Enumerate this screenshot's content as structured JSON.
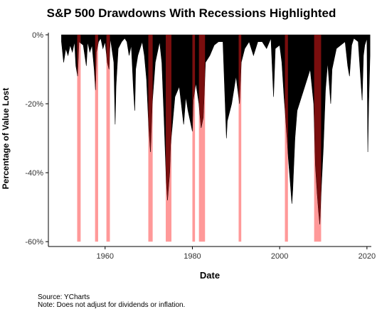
{
  "chart_data": {
    "type": "area",
    "title": "S&P 500 Drawdowns With Recessions Highlighted",
    "xlabel": "Date",
    "ylabel": "Percentage of Value Lost",
    "xlim": [
      1947,
      2021
    ],
    "ylim": [
      -61,
      0
    ],
    "x_ticks": [
      "1960",
      "1980",
      "2000",
      "2020"
    ],
    "y_ticks": [
      "0%",
      "-20%",
      "-40%",
      "-60%"
    ],
    "grid": false,
    "colors": {
      "drawdown": "#000000",
      "recession": "#ff9999",
      "recession_overlap": "#7a0e0e"
    },
    "recessions": [
      {
        "start": 1953.6,
        "end": 1954.4
      },
      {
        "start": 1957.7,
        "end": 1958.4
      },
      {
        "start": 1960.3,
        "end": 1961.1
      },
      {
        "start": 1969.9,
        "end": 1970.9
      },
      {
        "start": 1973.9,
        "end": 1975.2
      },
      {
        "start": 1980.0,
        "end": 1980.6
      },
      {
        "start": 1981.5,
        "end": 1982.9
      },
      {
        "start": 1990.6,
        "end": 1991.2
      },
      {
        "start": 2001.2,
        "end": 2001.9
      },
      {
        "start": 2007.9,
        "end": 2009.5
      }
    ],
    "series": [
      {
        "x": [
          1950.0,
          1950.5,
          1951.0,
          1951.5,
          1952.0,
          1952.5,
          1953.0,
          1953.3,
          1953.7,
          1954.0,
          1955.0,
          1955.7,
          1956.0,
          1956.5,
          1957.0,
          1957.5,
          1957.8,
          1958.0,
          1958.5,
          1959.0,
          1959.5,
          1960.0,
          1960.5,
          1960.9,
          1961.2,
          1962.0,
          1962.3,
          1962.5,
          1963.0,
          1963.8,
          1964.5,
          1965.0,
          1965.5,
          1966.0,
          1966.5,
          1966.8,
          1967.0,
          1967.5,
          1968.0,
          1968.5,
          1969.0,
          1969.5,
          1970.0,
          1970.4,
          1970.8,
          1971.5,
          1972.5,
          1973.0,
          1973.5,
          1974.0,
          1974.3,
          1974.8,
          1975.0,
          1975.5,
          1976.0,
          1977.0,
          1978.0,
          1978.5,
          1979.0,
          1980.0,
          1980.2,
          1980.8,
          1981.5,
          1982.0,
          1982.5,
          1983.0,
          1984.0,
          1985.0,
          1986.0,
          1987.0,
          1987.8,
          1988.0,
          1989.0,
          1990.0,
          1990.8,
          1991.2,
          1992.0,
          1993.0,
          1994.0,
          1995.0,
          1996.0,
          1997.0,
          1998.0,
          1998.6,
          1999.0,
          2000.0,
          2000.5,
          2001.0,
          2001.7,
          2002.0,
          2002.5,
          2002.8,
          2003.0,
          2003.5,
          2004.0,
          2005.0,
          2006.0,
          2007.0,
          2007.8,
          2008.2,
          2008.6,
          2008.9,
          2009.2,
          2009.6,
          2010.0,
          2010.5,
          2011.0,
          2011.7,
          2012.0,
          2013.0,
          2014.0,
          2015.0,
          2015.6,
          2016.0,
          2016.5,
          2017.0,
          2018.0,
          2018.9,
          2019.2,
          2019.5,
          2020.0,
          2020.2,
          2020.4,
          2020.7
        ],
        "y": [
          -2,
          -8,
          -4,
          -6,
          -3,
          -5,
          -2,
          -9,
          -12,
          -2,
          -3,
          -9,
          -2,
          -5,
          -3,
          -10,
          -16,
          -5,
          -2,
          -1,
          -4,
          -2,
          -8,
          -10,
          -1,
          -8,
          -26,
          -15,
          -4,
          -2,
          -1,
          -2,
          -6,
          -3,
          -16,
          -22,
          -10,
          -6,
          -4,
          -2,
          -6,
          -13,
          -27,
          -34,
          -20,
          -8,
          -2,
          -8,
          -24,
          -42,
          -48,
          -40,
          -32,
          -25,
          -18,
          -15,
          -26,
          -18,
          -22,
          -28,
          -19,
          -14,
          -20,
          -27,
          -24,
          -8,
          -6,
          -3,
          -2,
          -2,
          -30,
          -25,
          -20,
          -12,
          -20,
          -8,
          -4,
          -2,
          -6,
          -2,
          -2,
          -4,
          -1,
          -18,
          -4,
          -3,
          -8,
          -18,
          -30,
          -36,
          -44,
          -49,
          -45,
          -30,
          -22,
          -18,
          -14,
          -10,
          -20,
          -38,
          -46,
          -51,
          -55,
          -43,
          -33,
          -16,
          -8,
          -20,
          -10,
          -4,
          -3,
          -2,
          -9,
          -12,
          -3,
          -1,
          -2,
          -19,
          -6,
          -3,
          -1,
          -34,
          -20,
          -6
        ]
      }
    ]
  },
  "captions": {
    "source": "Source:  YCharts",
    "note": "Note: Does not adjust for dividends or inflation."
  }
}
